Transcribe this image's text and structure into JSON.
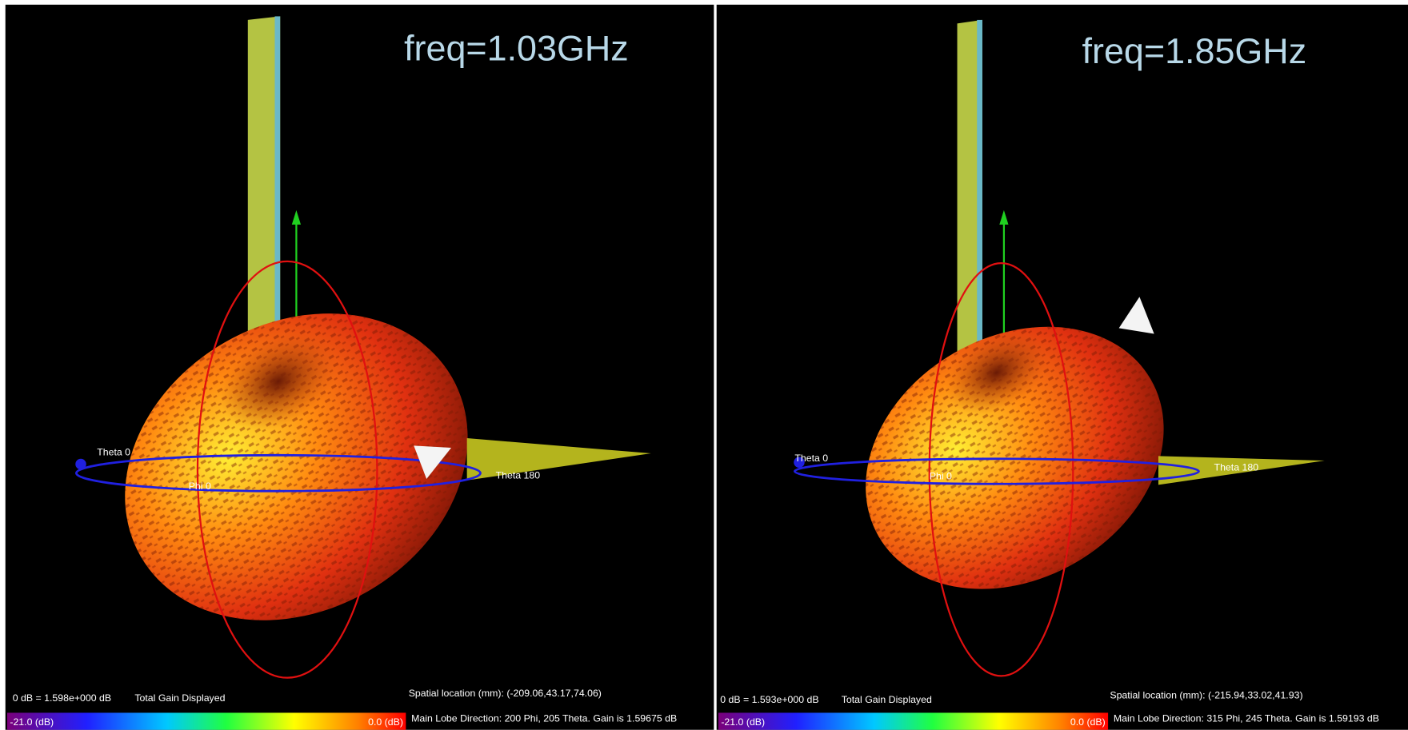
{
  "panels": [
    {
      "title": "freq=1.03GHz",
      "theta0": "Theta 0",
      "theta180": "Theta 180",
      "phi0": "Phi 0",
      "scale": "0 dB = 1.598e+000 dB",
      "mode": "Total Gain Displayed",
      "location": "Spatial location (mm): (-209.06,43.17,74.06)",
      "min_label": "-21.0 (dB)",
      "max_label": "0.0 (dB)",
      "main_lobe": "Main Lobe Direction: 200 Phi, 205 Theta.  Gain is 1.59675 dB"
    },
    {
      "title": "freq=1.85GHz",
      "theta0": "Theta 0",
      "theta180": "Theta 180",
      "phi0": "Phi 0",
      "scale": "0 dB = 1.593e+000 dB",
      "mode": "Total Gain Displayed",
      "location": "Spatial location (mm): (-215.94,33.02,41.93)",
      "min_label": "-21.0 (dB)",
      "max_label": "0.0 (dB)",
      "main_lobe": "Main Lobe Direction: 315 Phi, 245 Theta.  Gain is 1.59193 dB"
    }
  ]
}
